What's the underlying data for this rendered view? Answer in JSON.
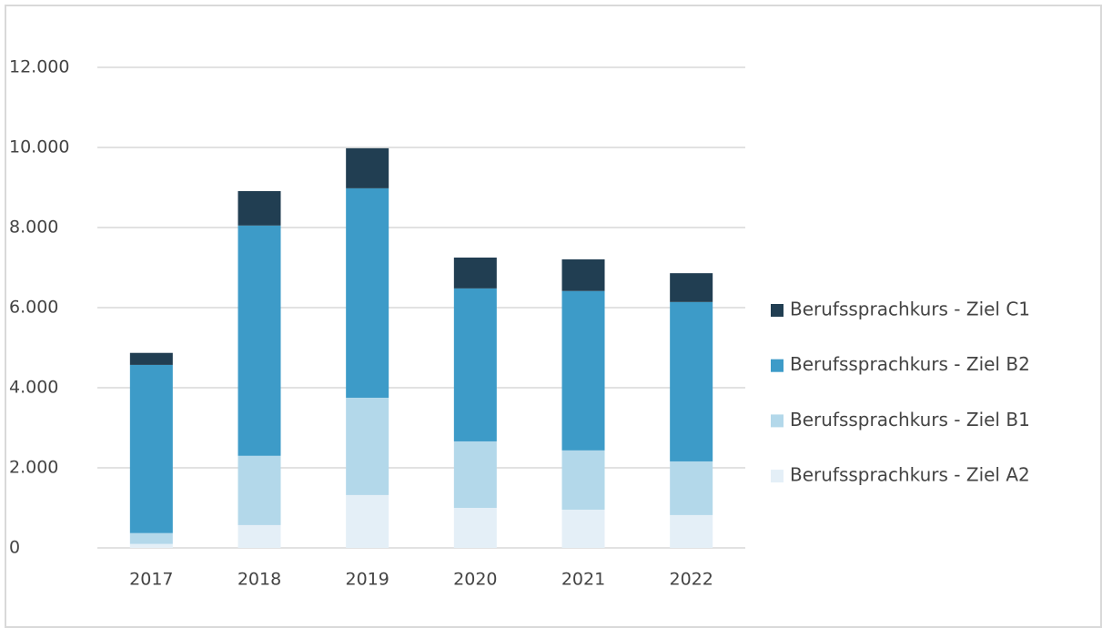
{
  "chart_data": {
    "type": "stacked_bar",
    "categories": [
      "2017",
      "2018",
      "2019",
      "2020",
      "2021",
      "2022"
    ],
    "series": [
      {
        "name": "Berufssprachkurs - Ziel A2",
        "color": "#e4eff7",
        "values": [
          100,
          570,
          1320,
          1000,
          955,
          820
        ]
      },
      {
        "name": "Berufssprachkurs - Ziel B1",
        "color": "#b3d8ea",
        "values": [
          270,
          1730,
          2430,
          1660,
          1480,
          1340
        ]
      },
      {
        "name": "Berufssprachkurs - Ziel B2",
        "color": "#3d9bc8",
        "values": [
          4200,
          5750,
          5230,
          3820,
          3980,
          3980
        ]
      },
      {
        "name": "Berufssprachkurs - Ziel C1",
        "color": "#213e52",
        "values": [
          300,
          860,
          1000,
          770,
          790,
          720
        ]
      }
    ],
    "ylim": [
      0,
      12000
    ],
    "yticks": [
      0,
      {
        "value": 2000,
        "label": "2.000"
      },
      {
        "value": 4000,
        "label": "4.000"
      },
      {
        "value": 6000,
        "label": "6.000"
      },
      {
        "value": 8000,
        "label": "8.000"
      },
      {
        "value": 10000,
        "label": "10.000"
      },
      {
        "value": 12000,
        "label": "12.000"
      }
    ],
    "grid": true,
    "legend": "right"
  }
}
